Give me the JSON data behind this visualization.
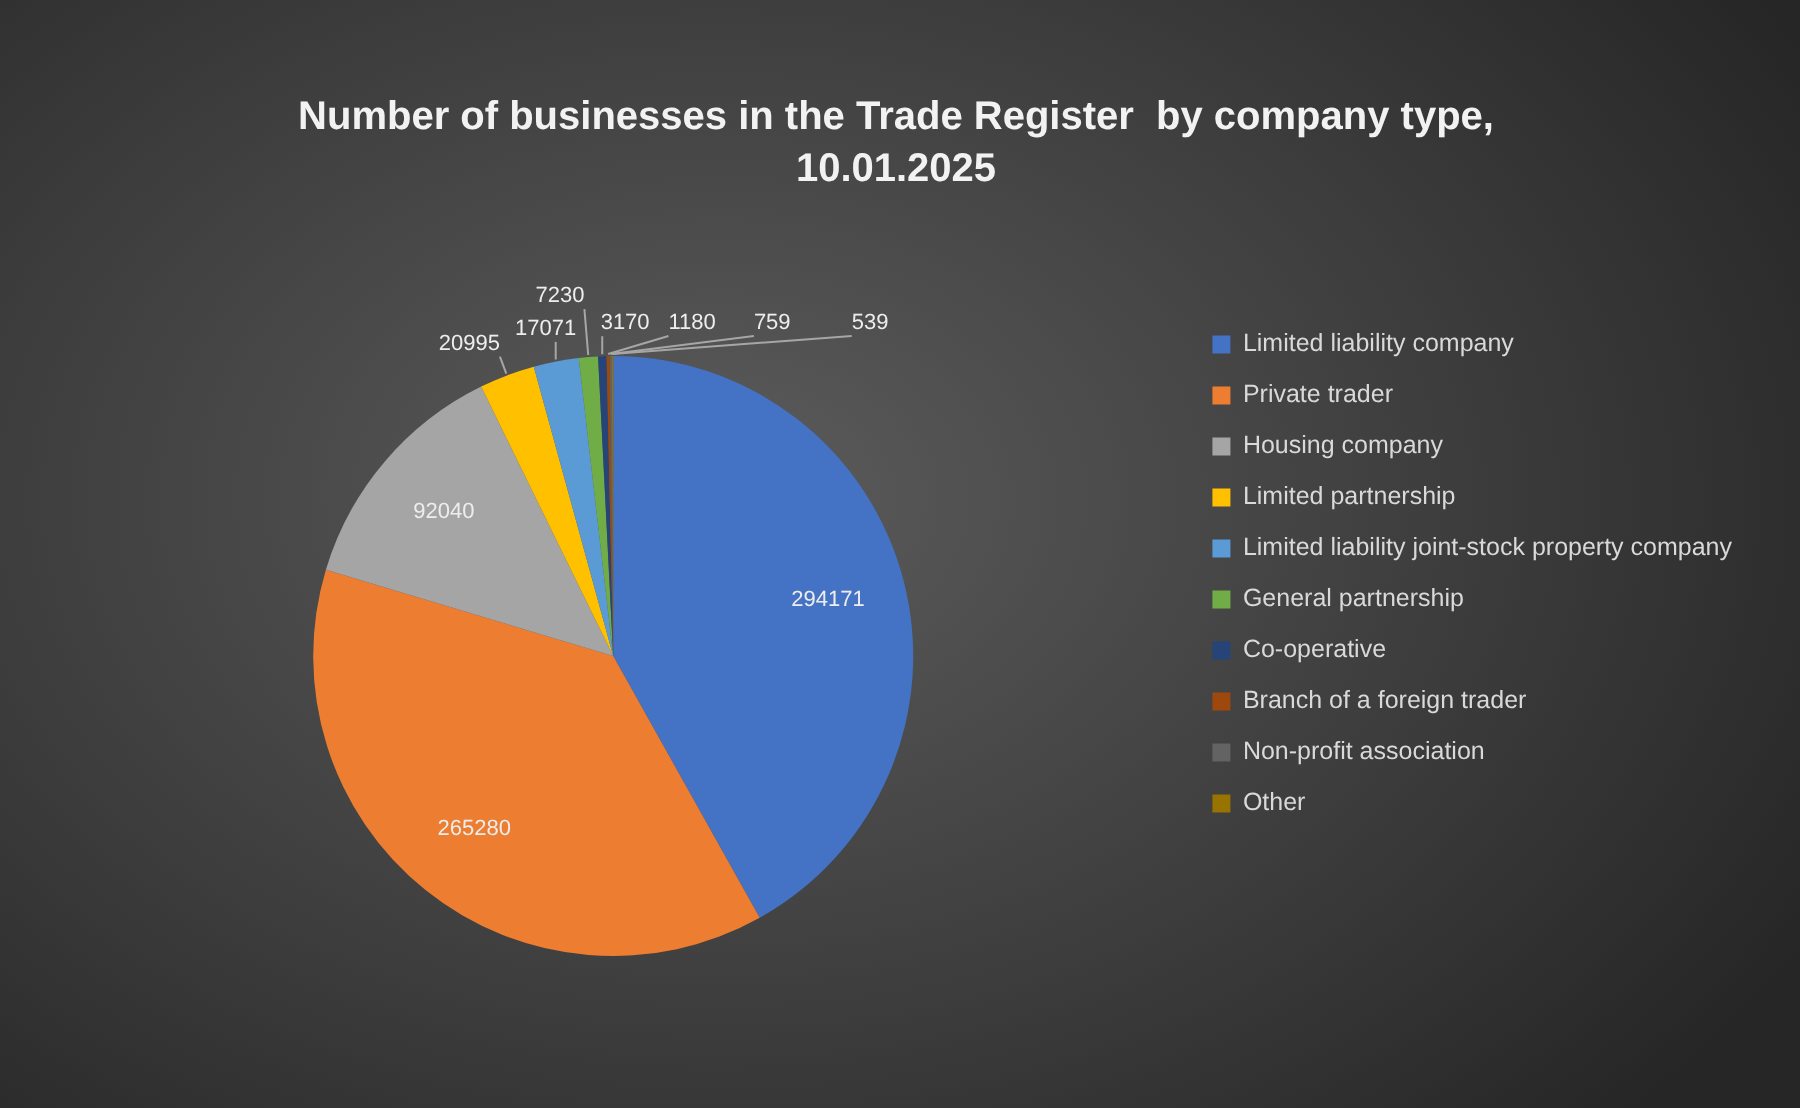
{
  "chart_data": {
    "type": "pie",
    "title": "Number of businesses in the Trade Register  by company type, 10.01.2025",
    "categories": [
      "Limited liability company",
      "Private trader",
      "Housing company",
      "Limited partnership",
      "Limited liability joint-stock property company",
      "General partnership",
      "Co-operative",
      "Branch of a foreign trader",
      "Non-profit association",
      "Other"
    ],
    "values": [
      294171,
      265280,
      92040,
      20995,
      17071,
      7230,
      3170,
      1180,
      759,
      539
    ],
    "colors": [
      "#4472c4",
      "#ed7d31",
      "#a5a5a5",
      "#ffc000",
      "#5b9bd5",
      "#70ad47",
      "#264478",
      "#9e480e",
      "#636363",
      "#997300"
    ],
    "legend": "right",
    "data_labels": true
  }
}
